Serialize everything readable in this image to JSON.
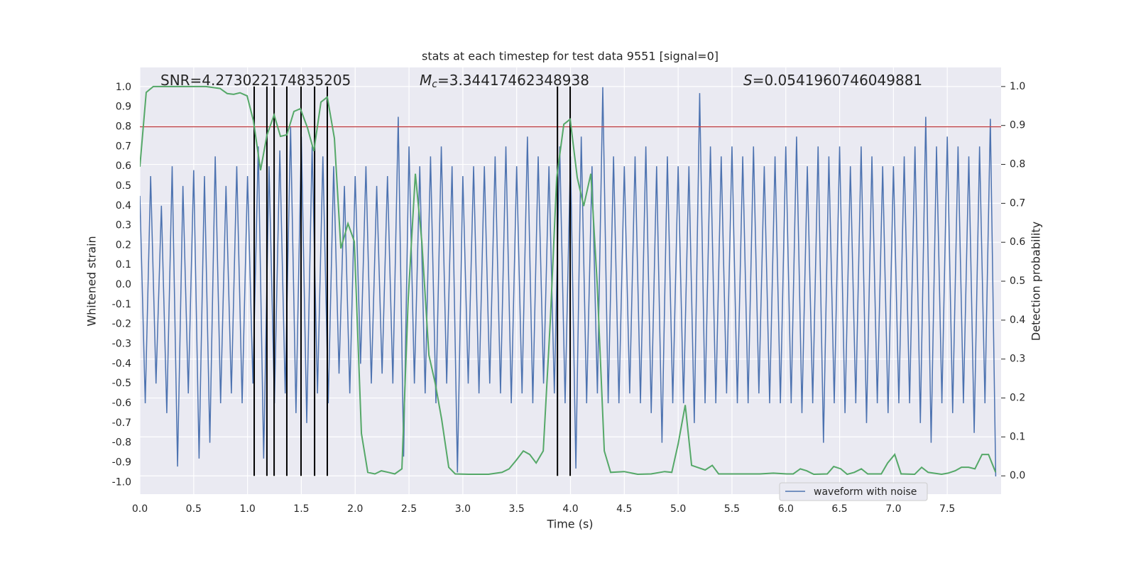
{
  "chart_data": {
    "type": "line",
    "title": "stats at each timestep for test data 9551 [signal=0]",
    "xlabel": "Time (s)",
    "ylabel": "Whitened strain",
    "y2label": "Detection probability",
    "annotations": [
      {
        "text": "SNR=4.273022174835205"
      },
      {
        "symbol": "M",
        "subscript": "c",
        "text": "=3.34417462348938"
      },
      {
        "symbol": "S",
        "text": "=0.0541960746049881"
      }
    ],
    "xlim": [
      0,
      8
    ],
    "ylim": [
      -1.06,
      1.1
    ],
    "y2lim": [
      -0.047,
      1.049
    ],
    "xticks": [
      {
        "value": 0,
        "label": "0.0"
      },
      0.5,
      {
        "value": 1,
        "label": "1.0"
      },
      1.5,
      {
        "value": 2,
        "label": "2.0"
      },
      2.5,
      {
        "value": 3,
        "label": "3.0"
      },
      3.5,
      {
        "value": 4,
        "label": "4.0"
      },
      4.5,
      {
        "value": 5,
        "label": "5.0"
      },
      5.5,
      {
        "value": 6,
        "label": "6.0"
      },
      6.5,
      {
        "value": 7,
        "label": "7.0"
      },
      7.5
    ],
    "yticks": [
      {
        "value": 1,
        "label": "1.0"
      },
      0.9,
      0.8,
      0.7,
      0.6,
      0.5,
      0.4,
      0.3,
      0.2,
      0.1,
      {
        "value": 0,
        "label": "0.0"
      },
      -0.1,
      -0.2,
      -0.3,
      -0.4,
      -0.5,
      -0.6,
      -0.7,
      -0.8,
      -0.9,
      {
        "value": -1,
        "label": "-1.0"
      }
    ],
    "y2ticks": [
      {
        "value": 1,
        "label": "1.0"
      },
      0.9,
      0.8,
      0.7,
      0.6,
      0.5,
      0.4,
      0.3,
      0.2,
      0.1,
      {
        "value": 0,
        "label": "0.0"
      }
    ],
    "grid": true,
    "legend": "lower right",
    "series": [
      {
        "name": "waveform with noise",
        "color": "#4c72b0",
        "x": [
          0,
          0.05,
          0.1,
          0.15,
          0.2,
          0.25,
          0.3,
          0.35,
          0.4,
          0.45,
          0.5,
          0.55,
          0.6,
          0.65,
          0.7,
          0.75,
          0.8,
          0.85,
          0.9,
          0.95,
          1,
          1.05,
          1.1,
          1.15,
          1.2,
          1.25,
          1.3,
          1.35,
          1.4,
          1.45,
          1.5,
          1.55,
          1.6,
          1.65,
          1.7,
          1.75,
          1.8,
          1.85,
          1.9,
          1.95,
          2,
          2.05,
          2.1,
          2.15,
          2.2,
          2.25,
          2.3,
          2.35,
          2.4,
          2.45,
          2.5,
          2.55,
          2.6,
          2.65,
          2.7,
          2.75,
          2.8,
          2.85,
          2.9,
          2.95,
          3,
          3.05,
          3.1,
          3.15,
          3.2,
          3.25,
          3.3,
          3.35,
          3.4,
          3.45,
          3.5,
          3.55,
          3.6,
          3.65,
          3.7,
          3.75,
          3.8,
          3.85,
          3.9,
          3.95,
          4,
          4.05,
          4.1,
          4.15,
          4.2,
          4.25,
          4.3,
          4.35,
          4.4,
          4.45,
          4.5,
          4.55,
          4.6,
          4.65,
          4.7,
          4.75,
          4.8,
          4.85,
          4.9,
          4.95,
          5,
          5.05,
          5.1,
          5.15,
          5.2,
          5.25,
          5.3,
          5.35,
          5.4,
          5.45,
          5.5,
          5.55,
          5.6,
          5.65,
          5.7,
          5.75,
          5.8,
          5.85,
          5.9,
          5.95,
          6,
          6.05,
          6.1,
          6.15,
          6.2,
          6.25,
          6.3,
          6.35,
          6.4,
          6.45,
          6.5,
          6.55,
          6.6,
          6.65,
          6.7,
          6.75,
          6.8,
          6.85,
          6.9,
          6.95,
          7,
          7.05,
          7.1,
          7.15,
          7.2,
          7.25,
          7.3,
          7.35,
          7.4,
          7.45,
          7.5,
          7.55,
          7.6,
          7.65,
          7.7,
          7.75,
          7.8,
          7.85,
          7.9,
          7.95
        ],
        "values": [
          0.45,
          -0.6,
          0.55,
          -0.5,
          0.4,
          -0.65,
          0.6,
          -0.92,
          0.5,
          -0.55,
          0.58,
          -0.88,
          0.55,
          -0.8,
          0.65,
          -0.6,
          0.5,
          -0.55,
          0.6,
          -0.6,
          0.55,
          -0.5,
          0.7,
          -0.88,
          0.6,
          -0.6,
          0.68,
          -0.55,
          0.8,
          -0.65,
          0.75,
          -0.7,
          0.7,
          -0.55,
          0.65,
          -0.6,
          0.6,
          -0.45,
          0.5,
          -0.55,
          0.55,
          -0.4,
          0.6,
          -0.5,
          0.5,
          -0.45,
          0.55,
          -0.5,
          0.85,
          -0.87,
          0.7,
          -0.5,
          0.6,
          -0.55,
          0.65,
          -0.6,
          0.7,
          -0.5,
          0.6,
          -0.95,
          0.55,
          -0.5,
          0.6,
          -0.55,
          0.6,
          -0.5,
          0.65,
          -0.55,
          0.7,
          -0.6,
          0.6,
          -0.55,
          0.75,
          -0.6,
          0.65,
          -0.5,
          0.6,
          -0.55,
          0.7,
          -0.6,
          0.65,
          -0.93,
          0.75,
          -0.6,
          0.6,
          -0.55,
          1.0,
          -0.6,
          0.65,
          -0.6,
          0.6,
          -0.55,
          0.65,
          -0.6,
          0.7,
          -0.65,
          0.6,
          -0.8,
          0.65,
          -0.6,
          0.6,
          -0.6,
          0.6,
          -0.7,
          0.97,
          -0.6,
          0.7,
          -0.6,
          0.65,
          -0.55,
          0.7,
          -0.6,
          0.65,
          -0.6,
          0.7,
          -0.55,
          0.6,
          -0.6,
          0.65,
          -0.6,
          0.7,
          -0.6,
          0.75,
          -0.65,
          0.6,
          -0.6,
          0.7,
          -0.8,
          0.65,
          -0.6,
          0.7,
          -0.65,
          0.6,
          -0.6,
          0.7,
          -0.7,
          0.65,
          -0.6,
          0.6,
          -0.65,
          0.6,
          -0.6,
          0.65,
          -0.6,
          0.7,
          -0.7,
          0.85,
          -0.8,
          0.7,
          -0.6,
          0.75,
          -0.65,
          0.7,
          -0.6,
          0.65,
          -0.75,
          0.7,
          -0.6,
          0.84,
          -0.97
        ]
      },
      {
        "color": "#55a868",
        "axis": "y2",
        "x": [
          0,
          0.059,
          0.125,
          0.185,
          0.35,
          0.613,
          0.745,
          0.811,
          0.871,
          0.93,
          0.996,
          1.055,
          1.121,
          1.181,
          1.247,
          1.306,
          1.365,
          1.431,
          1.491,
          1.557,
          1.616,
          1.682,
          1.741,
          1.807,
          1.867,
          1.933,
          1.992,
          2.058,
          2.117,
          2.183,
          2.243,
          2.309,
          2.368,
          2.434,
          2.493,
          2.559,
          2.619,
          2.685,
          2.744,
          2.803,
          2.869,
          2.929,
          3.054,
          3.239,
          3.364,
          3.43,
          3.496,
          3.562,
          3.621,
          3.681,
          3.747,
          3.813,
          3.872,
          3.938,
          3.997,
          4.063,
          4.123,
          4.189,
          4.248,
          4.314,
          4.373,
          4.499,
          4.624,
          4.749,
          4.875,
          4.941,
          5.0,
          5.066,
          5.125,
          5.251,
          5.317,
          5.376,
          5.567,
          5.759,
          5.884,
          6.009,
          6.069,
          6.135,
          6.194,
          6.26,
          6.385,
          6.445,
          6.511,
          6.57,
          6.636,
          6.702,
          6.761,
          6.887,
          6.946,
          7.012,
          7.071,
          7.197,
          7.262,
          7.322,
          7.447,
          7.507,
          7.573,
          7.632,
          7.698,
          7.757,
          7.823,
          7.883,
          7.949
        ],
        "values": [
          0.794,
          0.985,
          1.0,
          1.0,
          1.0,
          1.0,
          0.995,
          0.982,
          0.98,
          0.984,
          0.976,
          0.912,
          0.785,
          0.876,
          0.927,
          0.872,
          0.876,
          0.936,
          0.943,
          0.894,
          0.834,
          0.96,
          0.973,
          0.867,
          0.584,
          0.648,
          0.602,
          0.109,
          0.009,
          0.005,
          0.013,
          0.009,
          0.005,
          0.018,
          0.456,
          0.776,
          0.602,
          0.31,
          0.237,
          0.146,
          0.022,
          0.005,
          0.004,
          0.004,
          0.009,
          0.018,
          0.04,
          0.064,
          0.055,
          0.033,
          0.064,
          0.401,
          0.766,
          0.903,
          0.916,
          0.766,
          0.693,
          0.776,
          0.493,
          0.064,
          0.009,
          0.011,
          0.004,
          0.005,
          0.011,
          0.009,
          0.082,
          0.182,
          0.027,
          0.015,
          0.027,
          0.005,
          0.005,
          0.005,
          0.007,
          0.005,
          0.005,
          0.018,
          0.013,
          0.004,
          0.005,
          0.024,
          0.018,
          0.004,
          0.009,
          0.018,
          0.005,
          0.005,
          0.033,
          0.055,
          0.005,
          0.004,
          0.022,
          0.009,
          0.004,
          0.007,
          0.013,
          0.022,
          0.022,
          0.018,
          0.055,
          0.055,
          0.009
        ]
      }
    ],
    "hline": {
      "y": 0.8,
      "color": "#c44e52"
    },
    "vlines": {
      "x": [
        1.062,
        1.18,
        1.247,
        1.365,
        1.497,
        1.623,
        1.741,
        3.879,
        3.997
      ],
      "color": "#000000",
      "y2min": 0,
      "y2max": 1
    },
    "background": "#eaeaf2"
  }
}
